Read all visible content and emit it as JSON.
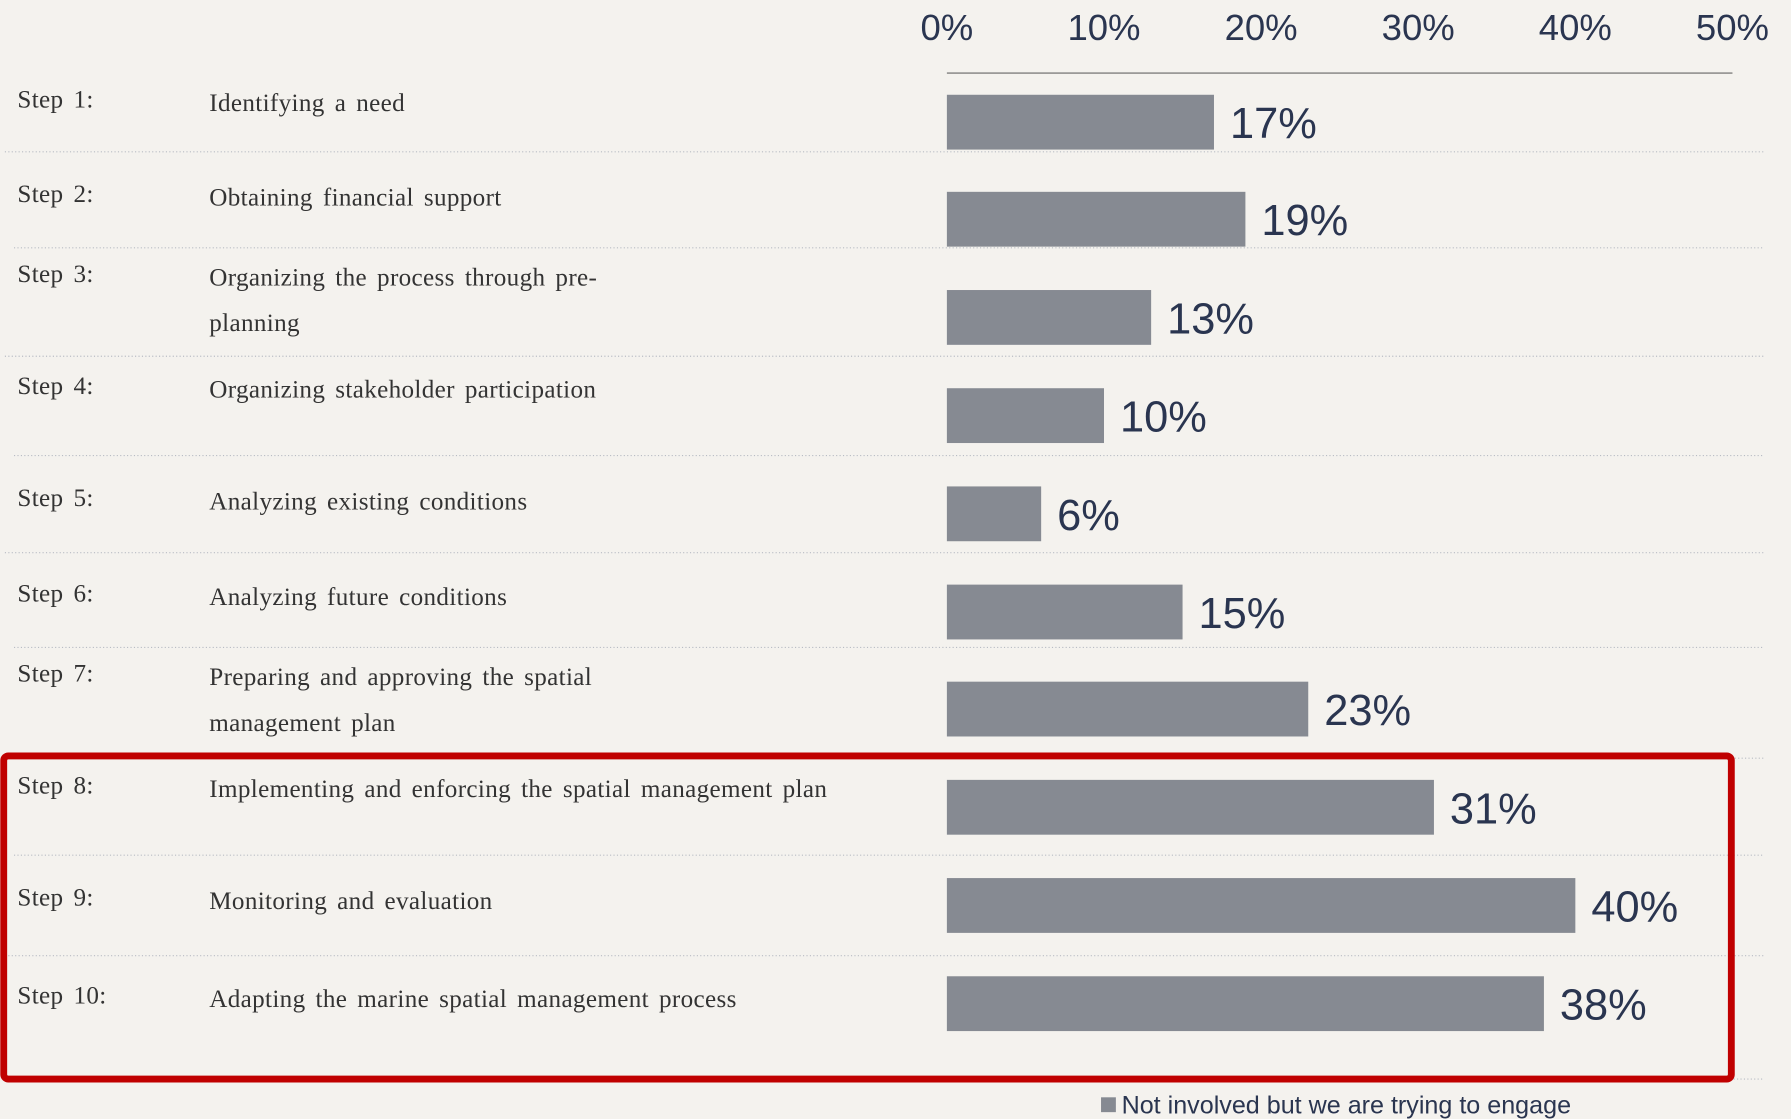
{
  "chart_data": {
    "type": "bar",
    "orientation": "horizontal",
    "step_labels": [
      "Step 1:",
      "Step 2:",
      "Step 3:",
      "Step 4:",
      "Step 5:",
      "Step 6:",
      "Step 7:",
      "Step 8:",
      "Step 9:",
      "Step 10:"
    ],
    "categories": [
      "Identifying a need",
      "Obtaining financial support",
      "Organizing the process through pre-planning",
      "Organizing stakeholder participation",
      "Analyzing existing conditions",
      "Analyzing future conditions",
      "Preparing and approving the spatial management plan",
      "Implementing and enforcing the spatial management plan",
      "Monitoring and evaluation",
      "Adapting the marine spatial management process"
    ],
    "series": [
      {
        "name": "Not involved but we are trying to engage",
        "color": "#868a92",
        "values": [
          17,
          19,
          13,
          10,
          6,
          15,
          23,
          31,
          40,
          38
        ],
        "value_labels": [
          "17%",
          "19%",
          "13%",
          "10%",
          "6%",
          "15%",
          "23%",
          "31%",
          "40%",
          "38%"
        ]
      }
    ],
    "xlim": [
      0,
      50
    ],
    "xticks": [
      {
        "value": 0,
        "label": "0%"
      },
      {
        "value": 10,
        "label": "10%"
      },
      {
        "value": 20,
        "label": "20%"
      },
      {
        "value": 30,
        "label": "30%"
      },
      {
        "value": 40,
        "label": "40%"
      },
      {
        "value": 50,
        "label": "50%"
      }
    ],
    "legend": "bottom"
  }
}
